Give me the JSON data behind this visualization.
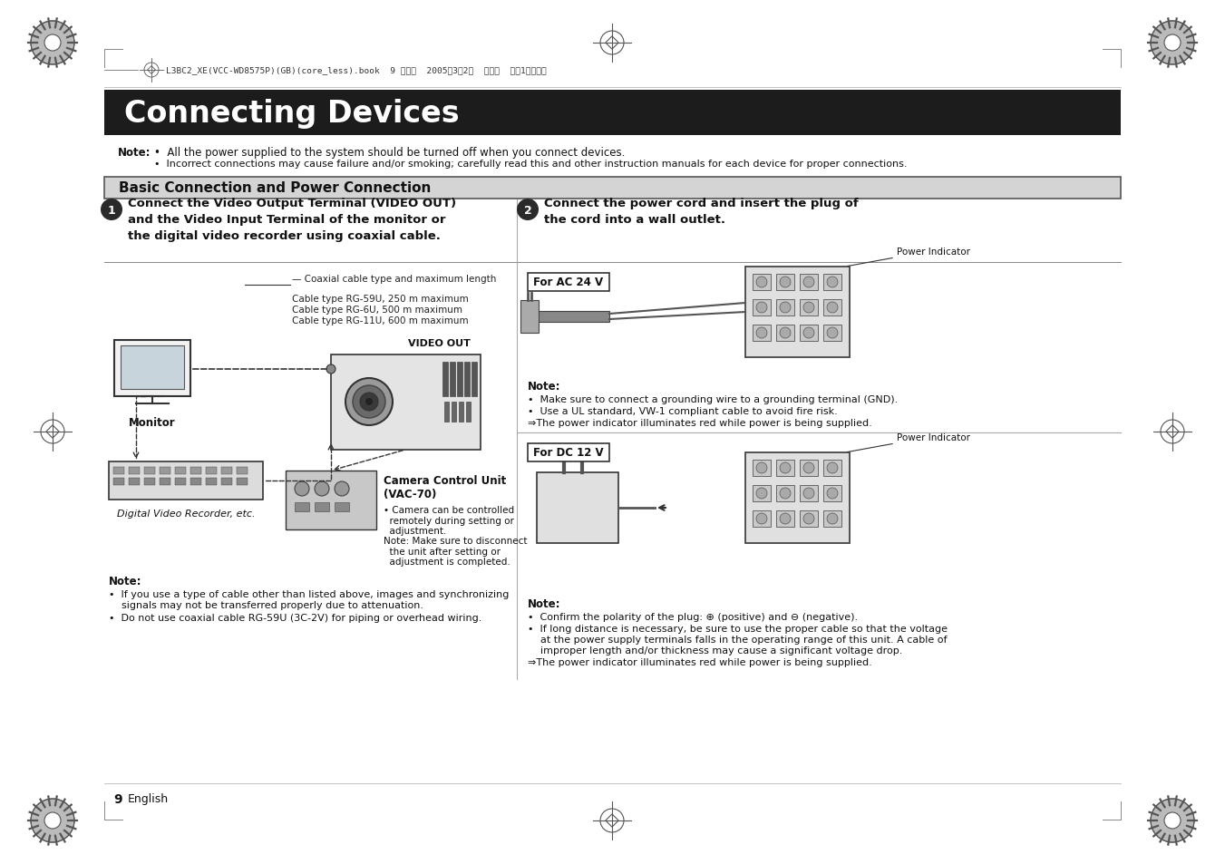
{
  "page_bg": "#ffffff",
  "title_bg": "#1c1c1c",
  "title_text": "Connecting Devices",
  "title_color": "#ffffff",
  "title_fontsize": 24,
  "section_bg": "#d4d4d4",
  "section_border": "#555555",
  "section_text": "Basic Connection and Power Connection",
  "section_fontsize": 11,
  "header_text": "L3BC2_XE(VCC-WD8575P)(GB)(core_less).book  9 ページ  2005年3月2日  水曜日  午後1時１７分",
  "note_label1": "Note:",
  "note_text1_1": "All the power supplied to the system should be turned off when you connect devices.",
  "note_text1_2": "Incorrect connections may cause failure and/or smoking; carefully read this and other instruction manuals for each device for proper connections.",
  "step1_num": "1",
  "step1_title_b": "Connect the Video Output Terminal (VIDEO OUT)\nand the Video Input Terminal of the monitor or\nthe digital video recorder using coaxial cable.",
  "step2_num": "2",
  "step2_title_b": "Connect the power cord and insert the plug of\nthe cord into a wall outlet.",
  "for_ac_label": "For AC 24 V",
  "for_dc_label": "For DC 12 V",
  "power_indicator_label": "Power Indicator",
  "monitor_label": "Monitor",
  "video_out_label": "VIDEO OUT",
  "dvr_label": "Digital Video Recorder, etc.",
  "ccu_label": "Camera Control Unit\n(VAC-70)",
  "ccu_note1": "• Camera can be controlled\n  remotely during setting or\n  adjustment.",
  "ccu_note2": "Note: Make sure to disconnect\n  the unit after setting or\n  adjustment is completed.",
  "cable_note_title": "— Coaxial cable type and maximum length",
  "cable_note1": "Cable type RG-59U, 250 m maximum",
  "cable_note2": "Cable type RG-6U, 500 m maximum",
  "cable_note3": "Cable type RG-11U, 600 m maximum",
  "note2_label": "Note:",
  "note2_1a": "If you use a type of cable other than listed above, images and synchronizing",
  "note2_1b": "signals may not be transferred properly due to attenuation.",
  "note2_2": "Do not use coaxial cable RG-59U (3C-2V) for piping or overhead wiring.",
  "note3_label": "Note:",
  "note3_1": "Make sure to connect a grounding wire to a grounding terminal (GND).",
  "note3_2": "Use a UL standard, VW-1 compliant cable to avoid fire risk.",
  "note3_3": "⇒The power indicator illuminates red while power is being supplied.",
  "note4_label": "Note:",
  "note4_1": "Confirm the polarity of the plug: ⊕ (positive) and ⊖ (negative).",
  "note4_2a": "If long distance is necessary, be sure to use the proper cable so that the voltage",
  "note4_2b": "at the power supply terminals falls in the operating range of this unit. A cable of",
  "note4_2c": "improper length and/or thickness may cause a significant voltage drop.",
  "note4_3": "⇒The power indicator illuminates red while power is being supplied.",
  "page_num": "9",
  "page_lang": "English"
}
